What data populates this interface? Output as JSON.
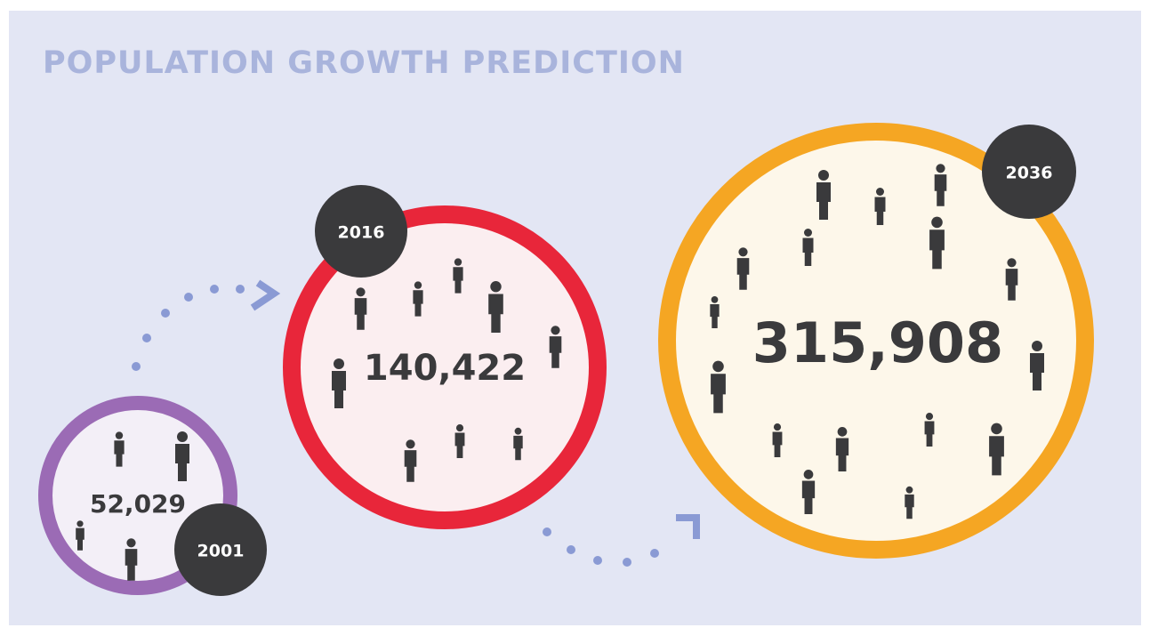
{
  "title": "POPULATION GROWTH PREDICTION",
  "items": [
    {
      "year": "2001",
      "population": "52,029"
    },
    {
      "year": "2016",
      "population": "140,422"
    },
    {
      "year": "2036",
      "population": "315,908"
    }
  ]
}
